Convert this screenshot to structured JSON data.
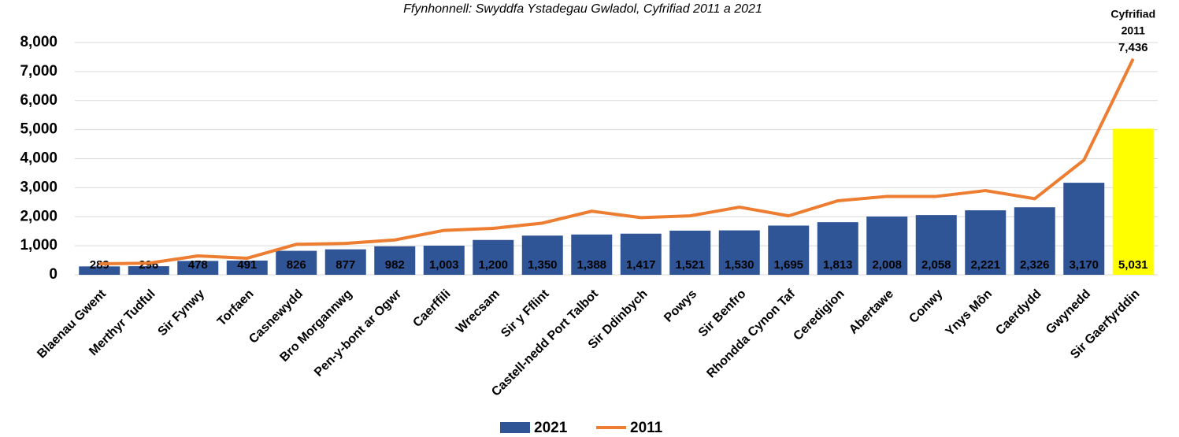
{
  "chart_data": {
    "type": "bar_line",
    "title": "Ffynhonnell: Swyddfa Ystadegau Gwladol, Cyfrifiad 2011 a 2021",
    "categories": [
      "Blaenau Gwent",
      "Merthyr Tudful",
      "Sir Fynwy",
      "Torfaen",
      "Casnewydd",
      "Bro Morgannwg",
      "Pen-y-bont ar Ogwr",
      "Caerffili",
      "Wrecsam",
      "Sir y Fflint",
      "Castell-nedd Port Talbot",
      "Sir Ddinbych",
      "Powys",
      "Sir Benfro",
      "Rhondda Cynon Taf",
      "Ceredigion",
      "Abertawe",
      "Conwy",
      "Ynys Môn",
      "Caerdydd",
      "Gwynedd",
      "Sir Gaerfyrddin"
    ],
    "series": [
      {
        "name": "2021",
        "kind": "bar",
        "color": "#2f5597",
        "highlight_color": "#ffff00",
        "highlight_index": 21,
        "values": [
          289,
          296,
          478,
          491,
          826,
          877,
          982,
          1003,
          1200,
          1350,
          1388,
          1417,
          1521,
          1530,
          1695,
          1813,
          2008,
          2058,
          2221,
          2326,
          3170,
          5031
        ],
        "value_labels": [
          "289",
          "296",
          "478",
          "491",
          "826",
          "877",
          "982",
          "1,003",
          "1,200",
          "1,350",
          "1,388",
          "1,417",
          "1,521",
          "1,530",
          "1,695",
          "1,813",
          "2,008",
          "2,058",
          "2,221",
          "2,326",
          "3,170",
          "5,031"
        ]
      },
      {
        "name": "2011",
        "kind": "line",
        "color": "#ed7d31",
        "values": [
          380,
          400,
          650,
          570,
          1050,
          1080,
          1200,
          1530,
          1600,
          1780,
          2190,
          1970,
          2030,
          2330,
          2030,
          2550,
          2700,
          2700,
          2900,
          2620,
          3950,
          7436
        ],
        "value_labels": [
          null,
          null,
          null,
          null,
          null,
          null,
          null,
          null,
          null,
          null,
          null,
          null,
          null,
          null,
          null,
          null,
          null,
          null,
          null,
          null,
          null,
          "7,436"
        ]
      }
    ],
    "annotation_lines": [
      "Cyfrifiad",
      "2011"
    ],
    "ylim": [
      0,
      8000
    ],
    "yticks": [
      0,
      {
        "value": 1000,
        "label": "1,000"
      },
      {
        "value": 2000,
        "label": "2,000"
      },
      {
        "value": 3000,
        "label": "3,000"
      },
      {
        "value": 4000,
        "label": "4,000"
      },
      {
        "value": 5000,
        "label": "5,000"
      },
      {
        "value": 6000,
        "label": "6,000"
      },
      {
        "value": 7000,
        "label": "7,000"
      },
      {
        "value": 8000,
        "label": "8,000"
      }
    ],
    "grid": true
  }
}
